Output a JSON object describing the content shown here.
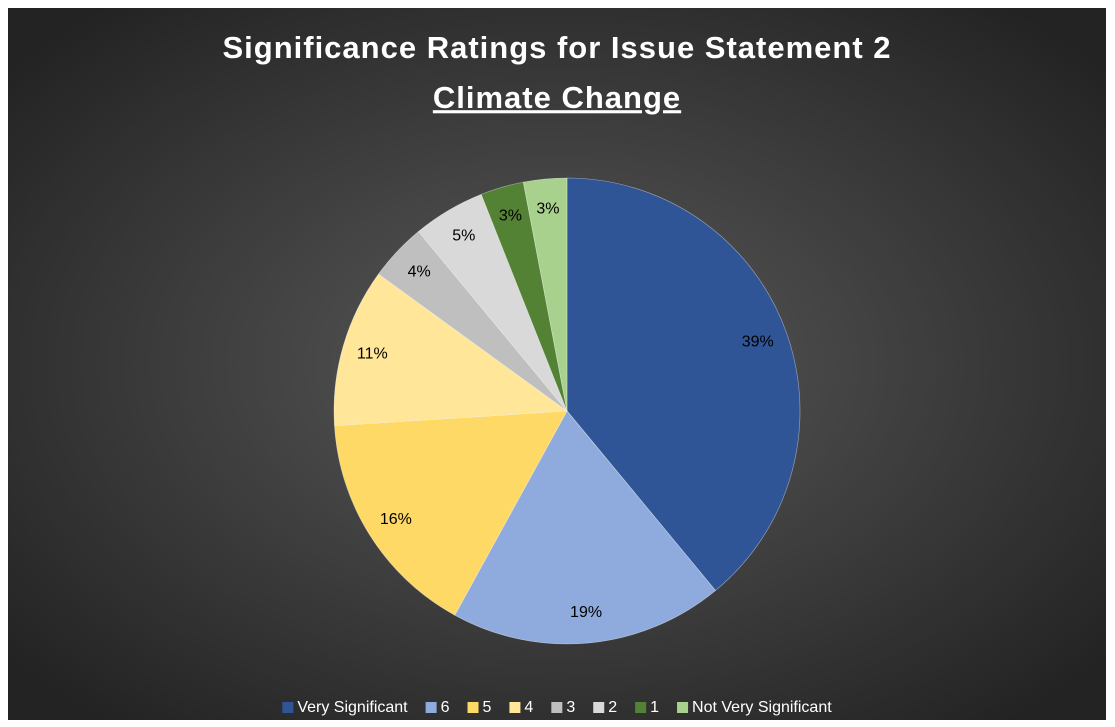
{
  "chart_data": {
    "type": "pie",
    "title": "Significance Ratings for Issue Statement 2",
    "title_underlined": "Climate Change",
    "categories": [
      "Very Significant",
      "6",
      "5",
      "4",
      "3",
      "2",
      "1",
      "Not Very Significant"
    ],
    "values": [
      39,
      19,
      16,
      11,
      4,
      5,
      3,
      3
    ],
    "value_labels": [
      "39%",
      "19%",
      "16%",
      "11%",
      "4%",
      "5%",
      "3%",
      "3%"
    ],
    "colors": [
      "#2f5597",
      "#8faadc",
      "#ffd966",
      "#ffe699",
      "#bfbfbf",
      "#d9d9d9",
      "#548235",
      "#a9d18e"
    ],
    "legend": "bottom"
  }
}
